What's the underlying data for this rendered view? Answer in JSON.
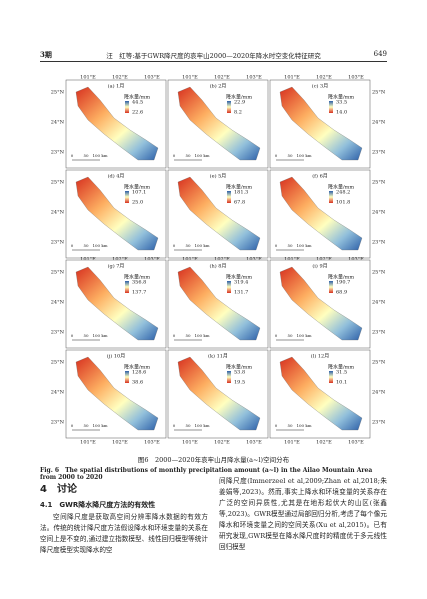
{
  "header": {
    "issue": "3期",
    "title": "汪　红等:基于GWR降尺度的哀牢山2000—2020年降水时空变化特征研究",
    "page": "649"
  },
  "figure": {
    "lon_labels": [
      "101°E",
      "102°E",
      "103°E"
    ],
    "lat_labels": [
      "25°N",
      "24°N",
      "23°N"
    ],
    "legend_title": "降水量/mm",
    "scale_labels": [
      "0",
      "50",
      "100 km"
    ],
    "panels": [
      {
        "label": "(a) 1月",
        "max": "44.5",
        "min": "22.6"
      },
      {
        "label": "(b) 2月",
        "max": "22.9",
        "min": "8.2"
      },
      {
        "label": "(c) 3月",
        "max": "33.5",
        "min": "14.0"
      },
      {
        "label": "(d) 4月",
        "max": "107.1",
        "min": "25.0"
      },
      {
        "label": "(e) 5月",
        "max": "181.3",
        "min": "67.8"
      },
      {
        "label": "(f) 6月",
        "max": "248.2",
        "min": "101.8"
      },
      {
        "label": "(g) 7月",
        "max": "356.8",
        "min": "137.7"
      },
      {
        "label": "(h) 8月",
        "max": "319.4",
        "min": "131.7"
      },
      {
        "label": "(i) 9月",
        "max": "190.7",
        "min": "68.9"
      },
      {
        "label": "(j) 10月",
        "max": "128.6",
        "min": "38.6"
      },
      {
        "label": "(k) 11月",
        "max": "53.8",
        "min": "19.5"
      },
      {
        "label": "(l) 12月",
        "max": "31.5",
        "min": "10.1"
      }
    ],
    "caption_cn": "图6　2000—2020年哀牢山月降水量(a~l)空间分布",
    "caption_en": "Fig. 6　The spatial distributions of monthly precipitation amount (a~l) in the Ailao Mountain Area from 2000 to 2020"
  },
  "section": {
    "heading": "4　讨论",
    "subheading": "4.1　GWR降水降尺度方法的有效性",
    "left": "空间降尺度是获取高空间分辨率降水数据的有效方法。传统的统计降尺度方法假设降水和环境变量的关系在空间上是不变的,通过建立指数模型、线性回归模型等统计降尺度模型实现降水的空",
    "right": "间降尺度(Immerzeel et al,2009;Zhan et al,2018;朱姜娟等,2023)。然而,事实上降水和环境变量的关系存在广泛的空间异质性,尤其是在地形起伏大的山区(张鑫等,2023)。GWR模型通过局部回归分析,考虑了每个像元降水和环境变量之间的空间关系(Xu et al,2015)。已有研究发现,GWR模型在降水降尺度时的精度优于多元线性回归模型"
  }
}
